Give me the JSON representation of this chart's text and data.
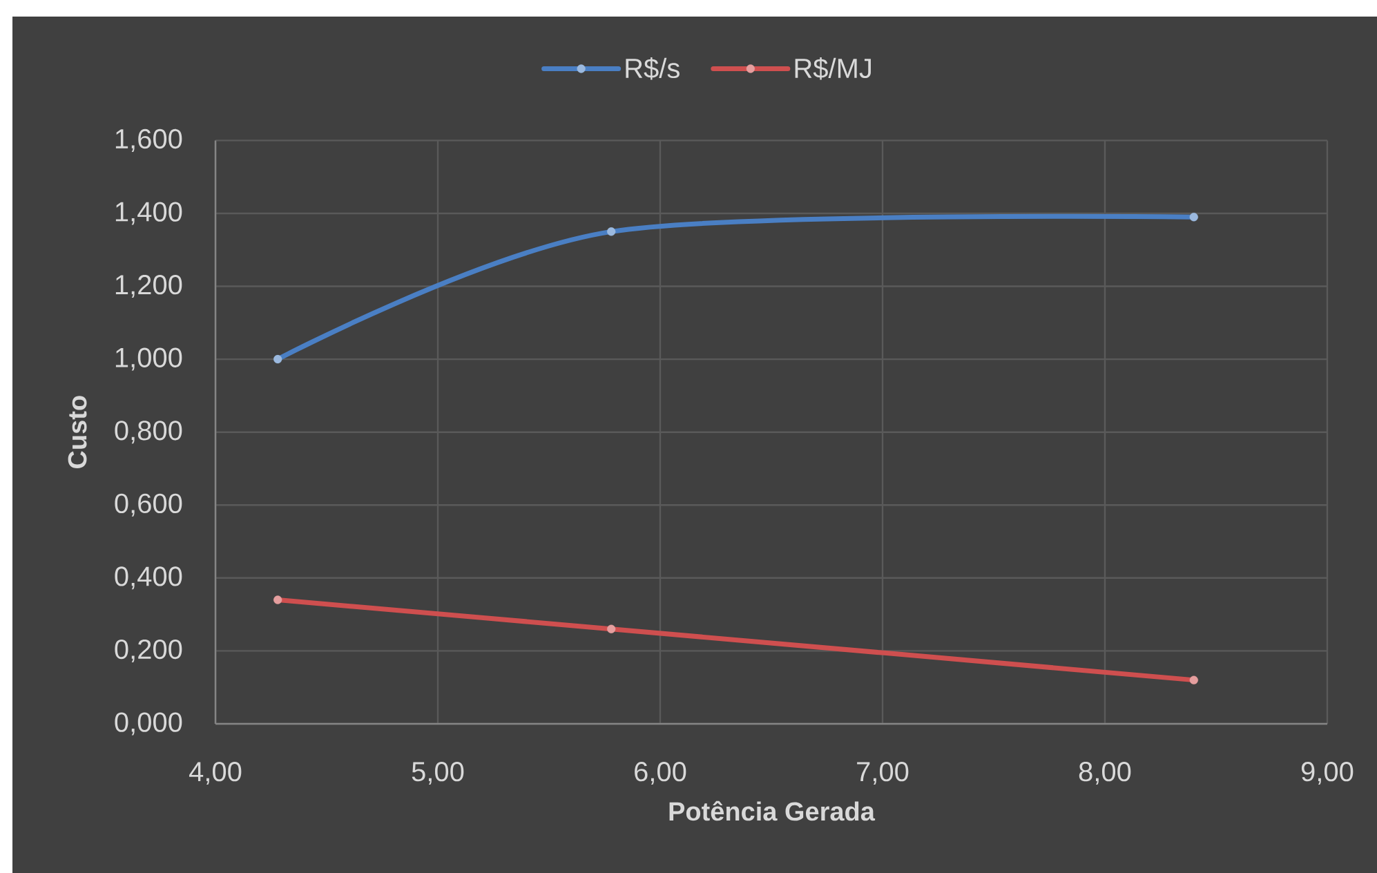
{
  "chart_data": {
    "type": "line",
    "xlabel": "Potência Gerada",
    "ylabel": "Custo",
    "x": [
      4.28,
      5.78,
      8.4
    ],
    "xlim": [
      4,
      9
    ],
    "xticks": [
      {
        "value": 4,
        "label": "4,00"
      },
      {
        "value": 5,
        "label": "5,00"
      },
      {
        "value": 6,
        "label": "6,00"
      },
      {
        "value": 7,
        "label": "7,00"
      },
      {
        "value": 8,
        "label": "8,00"
      },
      {
        "value": 9,
        "label": "9,00"
      }
    ],
    "ylim": [
      0,
      1.6
    ],
    "yticks": [
      {
        "value": 0,
        "label": "0,000"
      },
      {
        "value": 0.2,
        "label": "0,200"
      },
      {
        "value": 0.4,
        "label": "0,400"
      },
      {
        "value": 0.6,
        "label": "0,600"
      },
      {
        "value": 0.8,
        "label": "0,800"
      },
      {
        "value": 1.0,
        "label": "1,000"
      },
      {
        "value": 1.2,
        "label": "1,200"
      },
      {
        "value": 1.4,
        "label": "1,400"
      },
      {
        "value": 1.6,
        "label": "1,600"
      }
    ],
    "grid": true,
    "legend": "top",
    "marker": "circle",
    "line_style": "solid",
    "series": [
      {
        "name": "R$/s",
        "color": "#4a7fc4",
        "values": [
          1.0,
          1.35,
          1.39
        ]
      },
      {
        "name": "R$/MJ",
        "color": "#cf4f4f",
        "values": [
          0.34,
          0.26,
          0.12
        ]
      }
    ]
  }
}
